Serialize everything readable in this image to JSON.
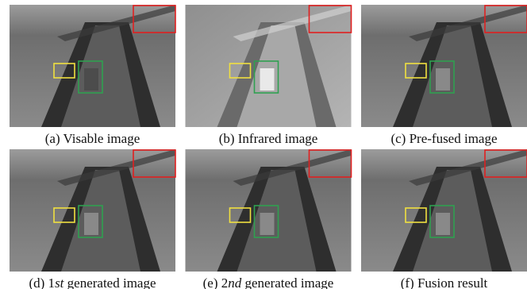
{
  "panels": [
    {
      "caption": [
        "(a) Visable image"
      ]
    },
    {
      "caption": [
        "(b) Infrared image"
      ]
    },
    {
      "caption": [
        "(c) Pre-fused image"
      ]
    },
    {
      "caption": [
        "(d) 1",
        "st",
        " generated image"
      ]
    },
    {
      "caption": [
        "(e) 2",
        "nd",
        " generated image"
      ]
    },
    {
      "caption": [
        "(f) Fusion result"
      ]
    }
  ]
}
